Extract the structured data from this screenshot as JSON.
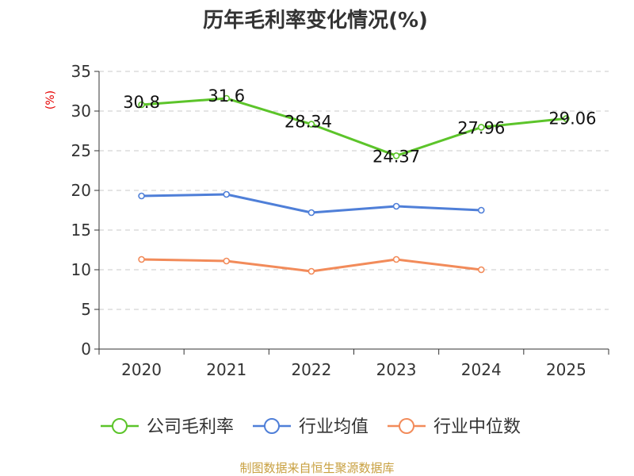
{
  "chart_data": {
    "type": "line",
    "title": "历年毛利率变化情况(%)",
    "ylabel": "(%)",
    "xlabel": "",
    "categories": [
      "2020",
      "2021",
      "2022",
      "2023",
      "2024",
      "2025"
    ],
    "ylim": [
      0,
      35
    ],
    "yticks": [
      0,
      5,
      10,
      15,
      20,
      25,
      30,
      35
    ],
    "grid": true,
    "legend_position": "bottom",
    "series": [
      {
        "name": "公司毛利率",
        "color": "#5cc42a",
        "show_labels": true,
        "values": [
          30.8,
          31.6,
          28.34,
          24.37,
          27.96,
          29.06
        ],
        "labels": [
          "30.8",
          "31.6",
          "28.34",
          "24.37",
          "27.96",
          "29.06"
        ]
      },
      {
        "name": "行业均值",
        "color": "#4f7fd8",
        "show_labels": false,
        "values": [
          19.3,
          19.5,
          17.2,
          18.0,
          17.5,
          null
        ]
      },
      {
        "name": "行业中位数",
        "color": "#f28b5a",
        "show_labels": false,
        "values": [
          11.3,
          11.1,
          9.8,
          11.3,
          10.0,
          null
        ]
      }
    ],
    "source": "制图数据来自恒生聚源数据库"
  }
}
